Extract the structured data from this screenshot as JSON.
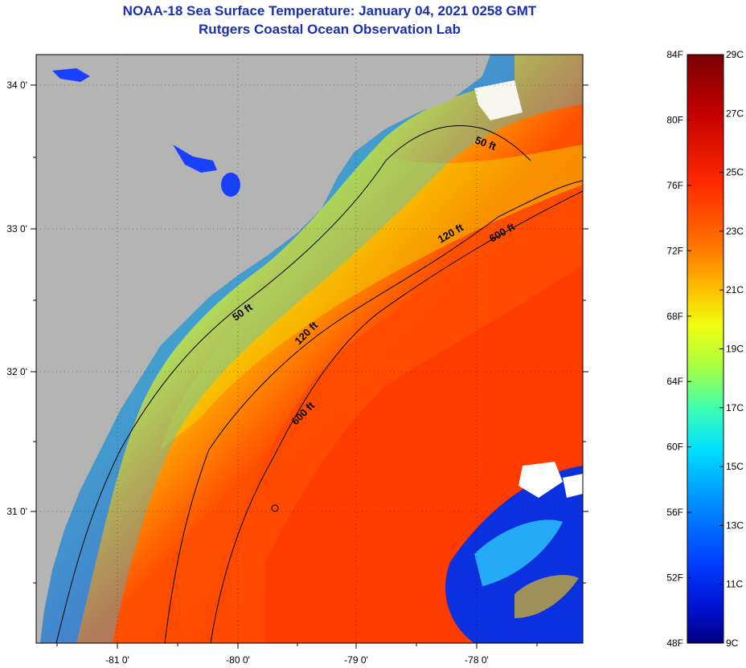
{
  "title": "NOAA-18 Sea Surface Temperature:  January 04, 2021 0258 GMT",
  "subtitle": "Rutgers Coastal Ocean Observation Lab",
  "lon_ticks": [
    "-81 0'",
    "-80 0'",
    "-79 0'",
    "-78 0'"
  ],
  "lat_ticks": [
    "34 0'",
    "33 0'",
    "32 0'",
    "31 0'"
  ],
  "contours": [
    "50 ft",
    "50 ft",
    "120 ft",
    "120 ft",
    "600 ft",
    "600 ft"
  ],
  "colorbar": {
    "fahrenheit": [
      "84F",
      "80F",
      "76F",
      "72F",
      "68F",
      "64F",
      "60F",
      "56F",
      "52F",
      "48F"
    ],
    "celsius": [
      "29C",
      "27C",
      "25C",
      "23C",
      "21C",
      "19C",
      "17C",
      "15C",
      "13C",
      "11C",
      "9C"
    ],
    "colors": [
      "#7a0000",
      "#c40000",
      "#ff2a00",
      "#ff6a00",
      "#ffa000",
      "#ffd000",
      "#f0ff10",
      "#a8ff40",
      "#40ffb0",
      "#00e0ff",
      "#0090ff",
      "#0040ff",
      "#0010d0",
      "#000080"
    ]
  },
  "palette": {
    "land": "#b4b4b4",
    "title": "#1a2fb0",
    "coastal_blue": "#1050ff",
    "warm": "#ff3a00"
  }
}
